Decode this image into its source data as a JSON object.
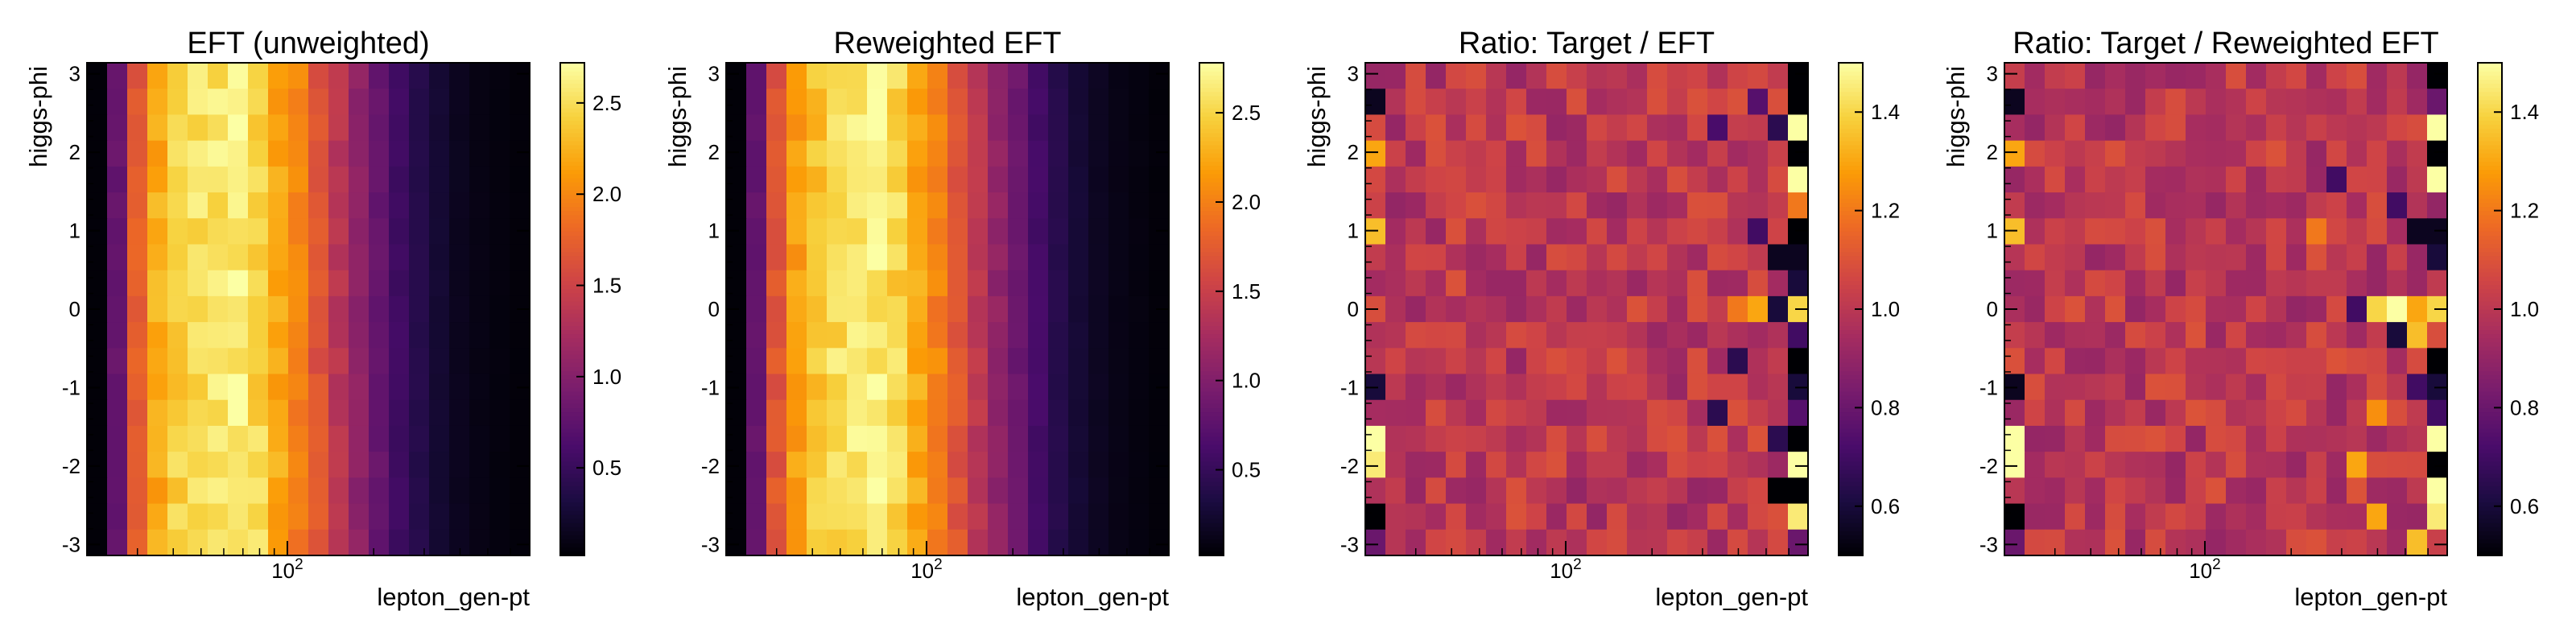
{
  "colormap": "inferno",
  "colors": {
    "background": "#ffffff",
    "frame": "#000000",
    "inferno_stops": [
      "#000004",
      "#1b0c41",
      "#4a0c6b",
      "#781c6d",
      "#a52c60",
      "#cf4446",
      "#ed6925",
      "#fb9b06",
      "#f7d13d",
      "#fcffa4"
    ]
  },
  "chart_data": [
    {
      "type": "heatmap",
      "title": "EFT (unweighted)",
      "xlabel": "lepton_gen-pt",
      "ylabel": "higgs-phi",
      "xscale": "log",
      "xlim": [
        20,
        700
      ],
      "ylim": [
        -3.14,
        3.14
      ],
      "x_tick_labels": [
        "10",
        "2"
      ],
      "y_ticks": [
        3,
        2,
        1,
        0,
        -1,
        -2,
        -3
      ],
      "y_tick_labels": [
        "3",
        "2",
        "1",
        "0",
        "-1",
        "-2",
        "-3"
      ],
      "colorbar": {
        "range": [
          0.02,
          2.72
        ],
        "ticks": [
          0.5,
          1.0,
          1.5,
          2.0,
          2.5
        ],
        "tick_labels": [
          "0.5",
          "1.0",
          "1.5",
          "2.0",
          "2.5"
        ]
      },
      "column_profile": [
        0.04,
        0.8,
        1.7,
        2.2,
        2.4,
        2.5,
        2.55,
        2.6,
        2.45,
        2.2,
        1.95,
        1.65,
        1.35,
        1.05,
        0.8,
        0.55,
        0.38,
        0.25,
        0.15,
        0.1,
        0.07,
        0.05
      ],
      "cells": []
    },
    {
      "type": "heatmap",
      "title": "Reweighted EFT",
      "xlabel": "lepton_gen-pt",
      "ylabel": "higgs-phi",
      "xscale": "log",
      "xlim": [
        20,
        700
      ],
      "ylim": [
        -3.14,
        3.14
      ],
      "x_tick_labels": [
        "10",
        "2"
      ],
      "y_ticks": [
        3,
        2,
        1,
        0,
        -1,
        -2,
        -3
      ],
      "y_tick_labels": [
        "3",
        "2",
        "1",
        "0",
        "-1",
        "-2",
        "-3"
      ],
      "colorbar": {
        "range": [
          0.02,
          2.78
        ],
        "ticks": [
          0.5,
          1.0,
          1.5,
          2.0,
          2.5
        ],
        "tick_labels": [
          "0.5",
          "1.0",
          "1.5",
          "2.0",
          "2.5"
        ]
      },
      "column_profile": [
        0.04,
        0.8,
        1.7,
        2.2,
        2.4,
        2.55,
        2.6,
        2.65,
        2.5,
        2.25,
        2.0,
        1.7,
        1.4,
        1.1,
        0.85,
        0.6,
        0.4,
        0.27,
        0.17,
        0.11,
        0.08,
        0.05
      ],
      "cells": []
    },
    {
      "type": "heatmap",
      "title": "Ratio: Target / EFT",
      "xlabel": "lepton_gen-pt",
      "ylabel": "higgs-phi",
      "xscale": "log",
      "xlim": [
        20,
        700
      ],
      "ylim": [
        -3.14,
        3.14
      ],
      "x_tick_labels": [
        "10",
        "2"
      ],
      "y_ticks": [
        3,
        2,
        1,
        0,
        -1,
        -2,
        -3
      ],
      "y_tick_labels": [
        "3",
        "2",
        "1",
        "0",
        "-1",
        "-2",
        "-3"
      ],
      "colorbar": {
        "range": [
          0.5,
          1.5
        ],
        "ticks": [
          0.6,
          0.8,
          1.0,
          1.2,
          1.4
        ],
        "tick_labels": [
          "0.6",
          "0.8",
          "1.0",
          "1.2",
          "1.4"
        ]
      },
      "cells": [
        {
          "col": 0,
          "row": 1,
          "value": 0.55
        },
        {
          "col": 0,
          "row": 3,
          "value": 1.3
        },
        {
          "col": 0,
          "row": 6,
          "value": 1.35
        },
        {
          "col": 0,
          "row": 12,
          "value": 0.6
        },
        {
          "col": 0,
          "row": 14,
          "value": 1.5
        },
        {
          "col": 0,
          "row": 15,
          "value": 1.45
        },
        {
          "col": 0,
          "row": 17,
          "value": 0.5
        },
        {
          "col": 0,
          "row": 18,
          "value": 0.8
        },
        {
          "col": 21,
          "row": 0,
          "value": 0.5
        },
        {
          "col": 21,
          "row": 1,
          "value": 0.5
        },
        {
          "col": 21,
          "row": 2,
          "value": 1.5
        },
        {
          "col": 21,
          "row": 3,
          "value": 0.5
        },
        {
          "col": 21,
          "row": 4,
          "value": 1.5
        },
        {
          "col": 21,
          "row": 5,
          "value": 1.2
        },
        {
          "col": 21,
          "row": 6,
          "value": 0.5
        },
        {
          "col": 21,
          "row": 7,
          "value": 0.55
        },
        {
          "col": 21,
          "row": 8,
          "value": 0.6
        },
        {
          "col": 21,
          "row": 9,
          "value": 1.4
        },
        {
          "col": 21,
          "row": 10,
          "value": 0.7
        },
        {
          "col": 21,
          "row": 11,
          "value": 0.5
        },
        {
          "col": 21,
          "row": 12,
          "value": 0.6
        },
        {
          "col": 21,
          "row": 13,
          "value": 0.75
        },
        {
          "col": 21,
          "row": 14,
          "value": 0.5
        },
        {
          "col": 21,
          "row": 15,
          "value": 1.5
        },
        {
          "col": 21,
          "row": 16,
          "value": 0.5
        },
        {
          "col": 21,
          "row": 17,
          "value": 1.45
        },
        {
          "col": 21,
          "row": 18,
          "value": 0.8
        },
        {
          "col": 19,
          "row": 9,
          "value": 1.3
        },
        {
          "col": 18,
          "row": 9,
          "value": 1.2
        },
        {
          "col": 20,
          "row": 9,
          "value": 0.6
        },
        {
          "col": 20,
          "row": 7,
          "value": 0.55
        },
        {
          "col": 19,
          "row": 6,
          "value": 0.7
        },
        {
          "col": 20,
          "row": 16,
          "value": 0.5
        },
        {
          "col": 20,
          "row": 14,
          "value": 0.65
        },
        {
          "col": 18,
          "row": 11,
          "value": 0.65
        },
        {
          "col": 17,
          "row": 13,
          "value": 0.65
        },
        {
          "col": 20,
          "row": 2,
          "value": 0.65
        },
        {
          "col": 19,
          "row": 1,
          "value": 0.75
        },
        {
          "col": 17,
          "row": 2,
          "value": 0.72
        }
      ]
    },
    {
      "type": "heatmap",
      "title": "Ratio: Target / Reweighted EFT",
      "xlabel": "lepton_gen-pt",
      "ylabel": "higgs-phi",
      "xscale": "log",
      "xlim": [
        20,
        700
      ],
      "ylim": [
        -3.14,
        3.14
      ],
      "x_tick_labels": [
        "10",
        "2"
      ],
      "y_ticks": [
        3,
        2,
        1,
        0,
        -1,
        -2,
        -3
      ],
      "y_tick_labels": [
        "3",
        "2",
        "1",
        "0",
        "-1",
        "-2",
        "-3"
      ],
      "colorbar": {
        "range": [
          0.5,
          1.5
        ],
        "ticks": [
          0.6,
          0.8,
          1.0,
          1.2,
          1.4
        ],
        "tick_labels": [
          "0.6",
          "0.8",
          "1.0",
          "1.2",
          "1.4"
        ]
      },
      "cells": [
        {
          "col": 0,
          "row": 1,
          "value": 0.55
        },
        {
          "col": 0,
          "row": 3,
          "value": 1.3
        },
        {
          "col": 0,
          "row": 6,
          "value": 1.35
        },
        {
          "col": 0,
          "row": 12,
          "value": 0.55
        },
        {
          "col": 0,
          "row": 14,
          "value": 1.5
        },
        {
          "col": 0,
          "row": 15,
          "value": 1.5
        },
        {
          "col": 0,
          "row": 17,
          "value": 0.5
        },
        {
          "col": 0,
          "row": 18,
          "value": 0.8
        },
        {
          "col": 21,
          "row": 0,
          "value": 0.5
        },
        {
          "col": 21,
          "row": 1,
          "value": 0.8
        },
        {
          "col": 21,
          "row": 2,
          "value": 1.5
        },
        {
          "col": 21,
          "row": 3,
          "value": 0.5
        },
        {
          "col": 21,
          "row": 4,
          "value": 1.5
        },
        {
          "col": 21,
          "row": 5,
          "value": 0.9
        },
        {
          "col": 21,
          "row": 6,
          "value": 0.55
        },
        {
          "col": 21,
          "row": 7,
          "value": 0.6
        },
        {
          "col": 21,
          "row": 9,
          "value": 1.4
        },
        {
          "col": 21,
          "row": 11,
          "value": 0.5
        },
        {
          "col": 21,
          "row": 12,
          "value": 0.6
        },
        {
          "col": 21,
          "row": 13,
          "value": 0.7
        },
        {
          "col": 21,
          "row": 14,
          "value": 1.5
        },
        {
          "col": 21,
          "row": 15,
          "value": 0.5
        },
        {
          "col": 21,
          "row": 16,
          "value": 1.5
        },
        {
          "col": 21,
          "row": 17,
          "value": 1.45
        },
        {
          "col": 18,
          "row": 9,
          "value": 1.4
        },
        {
          "col": 19,
          "row": 9,
          "value": 1.5
        },
        {
          "col": 20,
          "row": 9,
          "value": 1.3
        },
        {
          "col": 20,
          "row": 10,
          "value": 1.35
        },
        {
          "col": 19,
          "row": 10,
          "value": 0.6
        },
        {
          "col": 17,
          "row": 9,
          "value": 0.7
        },
        {
          "col": 20,
          "row": 6,
          "value": 0.55
        },
        {
          "col": 19,
          "row": 5,
          "value": 0.7
        },
        {
          "col": 18,
          "row": 13,
          "value": 1.25
        },
        {
          "col": 20,
          "row": 12,
          "value": 0.7
        },
        {
          "col": 17,
          "row": 15,
          "value": 1.3
        },
        {
          "col": 18,
          "row": 17,
          "value": 1.3
        },
        {
          "col": 20,
          "row": 18,
          "value": 1.35
        },
        {
          "col": 15,
          "row": 6,
          "value": 1.2
        },
        {
          "col": 16,
          "row": 4,
          "value": 0.7
        }
      ]
    }
  ]
}
